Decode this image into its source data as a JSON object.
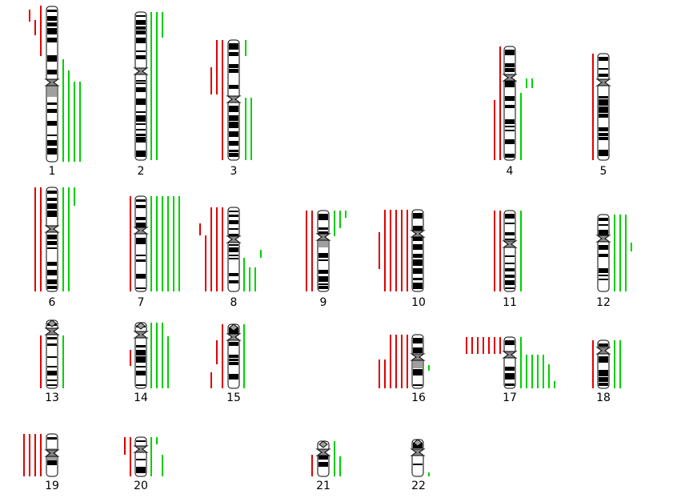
{
  "colors": {
    "loss": "#e00000",
    "gain": "#00d000",
    "band_dark": "#000000",
    "band_light": "#ffffff",
    "heterochromatin": "#a0a0a0",
    "centromere": "#888888",
    "outline": "#000000"
  },
  "chromosomes": [
    {
      "id": "chr1",
      "label": "1"
    },
    {
      "id": "chr2",
      "label": "2"
    },
    {
      "id": "chr3",
      "label": "3"
    },
    {
      "id": "chr4",
      "label": "4"
    },
    {
      "id": "chr5",
      "label": "5"
    },
    {
      "id": "chr6",
      "label": "6"
    },
    {
      "id": "chr7",
      "label": "7"
    },
    {
      "id": "chr8",
      "label": "8"
    },
    {
      "id": "chr9",
      "label": "9"
    },
    {
      "id": "chr10",
      "label": "10"
    },
    {
      "id": "chr11",
      "label": "11"
    },
    {
      "id": "chr12",
      "label": "12"
    },
    {
      "id": "chr13",
      "label": "13"
    },
    {
      "id": "chr14",
      "label": "14"
    },
    {
      "id": "chr15",
      "label": "15"
    },
    {
      "id": "chr16",
      "label": "16"
    },
    {
      "id": "chr17",
      "label": "17"
    },
    {
      "id": "chr18",
      "label": "18"
    },
    {
      "id": "chr19",
      "label": "19"
    },
    {
      "id": "chr20",
      "label": "20"
    },
    {
      "id": "chr21",
      "label": "21"
    },
    {
      "id": "chr22",
      "label": "22"
    }
  ]
}
